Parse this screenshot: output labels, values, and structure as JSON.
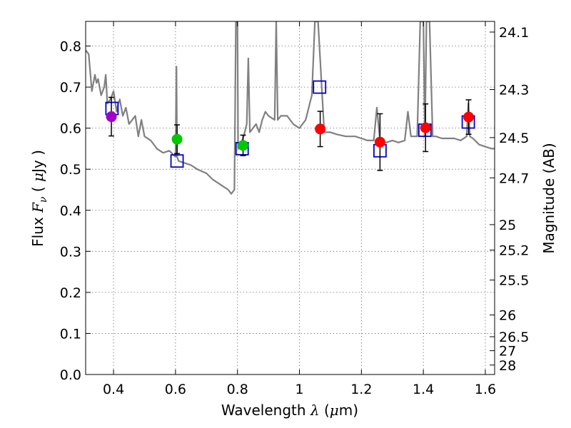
{
  "chart_data": {
    "type": "scatter",
    "xlabel": {
      "prefix": "Wavelength",
      "symbol": "λ",
      "units_open": "(",
      "units_mu": "μ",
      "units_rest": "m)"
    },
    "ylabel": {
      "prefix": "Flux",
      "symbol": "F",
      "subscript": "ν",
      "units_open": "( ",
      "units_mu": "μ",
      "units_rest": "Jy )"
    },
    "y2label": "Magnitude (AB)",
    "xlim": [
      0.31,
      1.63
    ],
    "ylim": [
      0.0,
      0.86
    ],
    "xticks": [
      0.4,
      0.6,
      0.8,
      1.0,
      1.2,
      1.4,
      1.6
    ],
    "xtick_labels": [
      "0.4",
      "0.6",
      "0.8",
      "1",
      "1.2",
      "1.4",
      "1.6"
    ],
    "yticks": [
      0.0,
      0.1,
      0.2,
      0.3,
      0.4,
      0.5,
      0.6,
      0.7,
      0.8
    ],
    "ytick_labels": [
      "0.0",
      "0.1",
      "0.2",
      "0.3",
      "0.4",
      "0.5",
      "0.6",
      "0.7",
      "0.8"
    ],
    "y2ticks": [
      {
        "flux": 0.834,
        "label": "24.1"
      },
      {
        "flux": 0.694,
        "label": "24.3"
      },
      {
        "flux": 0.577,
        "label": "24.5"
      },
      {
        "flux": 0.479,
        "label": "24.7"
      },
      {
        "flux": 0.365,
        "label": "25"
      },
      {
        "flux": 0.303,
        "label": "25.2"
      },
      {
        "flux": 0.23,
        "label": "25.5"
      },
      {
        "flux": 0.145,
        "label": "26"
      },
      {
        "flux": 0.092,
        "label": "26.5"
      },
      {
        "flux": 0.058,
        "label": "27"
      },
      {
        "flux": 0.023,
        "label": "28"
      }
    ],
    "grid": true,
    "series": [
      {
        "name": "model_sed",
        "kind": "line",
        "color": "#808080",
        "x": [
          0.31,
          0.32,
          0.33,
          0.34,
          0.345,
          0.35,
          0.36,
          0.37,
          0.375,
          0.38,
          0.39,
          0.4,
          0.41,
          0.415,
          0.42,
          0.43,
          0.44,
          0.45,
          0.47,
          0.48,
          0.49,
          0.5,
          0.52,
          0.54,
          0.56,
          0.58,
          0.6,
          0.603,
          0.605,
          0.61,
          0.63,
          0.65,
          0.67,
          0.7,
          0.72,
          0.75,
          0.77,
          0.78,
          0.79,
          0.795,
          0.8,
          0.802,
          0.805,
          0.81,
          0.82,
          0.83,
          0.835,
          0.84,
          0.85,
          0.86,
          0.87,
          0.88,
          0.89,
          0.9,
          0.92,
          0.925,
          0.93,
          0.94,
          0.96,
          0.98,
          1.0,
          1.02,
          1.04,
          1.05,
          1.06,
          1.08,
          1.1,
          1.12,
          1.15,
          1.18,
          1.2,
          1.22,
          1.24,
          1.25,
          1.26,
          1.28,
          1.3,
          1.32,
          1.34,
          1.35,
          1.36,
          1.38,
          1.39,
          1.4,
          1.405,
          1.41,
          1.42,
          1.43,
          1.44,
          1.46,
          1.48,
          1.5,
          1.52,
          1.54,
          1.545,
          1.55,
          1.56,
          1.58,
          1.6,
          1.62,
          1.63
        ],
        "y": [
          0.79,
          0.78,
          0.69,
          0.73,
          0.71,
          0.72,
          0.68,
          0.7,
          0.73,
          0.66,
          0.67,
          0.69,
          0.64,
          0.66,
          0.67,
          0.63,
          0.65,
          0.61,
          0.63,
          0.58,
          0.62,
          0.58,
          0.57,
          0.55,
          0.54,
          0.545,
          0.53,
          0.75,
          0.53,
          0.52,
          0.515,
          0.51,
          0.5,
          0.49,
          0.475,
          0.46,
          0.45,
          0.44,
          0.45,
          0.86,
          0.86,
          0.55,
          0.55,
          0.56,
          0.58,
          0.61,
          0.77,
          0.59,
          0.6,
          0.61,
          0.59,
          0.62,
          0.64,
          0.63,
          0.62,
          0.86,
          0.62,
          0.63,
          0.63,
          0.61,
          0.6,
          0.62,
          0.68,
          0.86,
          0.86,
          0.59,
          0.59,
          0.585,
          0.58,
          0.58,
          0.575,
          0.57,
          0.57,
          0.65,
          0.57,
          0.565,
          0.57,
          0.565,
          0.57,
          0.64,
          0.58,
          0.58,
          0.86,
          0.86,
          0.58,
          0.86,
          0.86,
          0.58,
          0.58,
          0.575,
          0.575,
          0.575,
          0.57,
          0.58,
          0.66,
          0.58,
          0.575,
          0.56,
          0.555,
          0.55,
          0.55
        ]
      },
      {
        "name": "model_photometry",
        "kind": "open-square",
        "color": "#0000cc",
        "x": [
          0.395,
          0.605,
          0.815,
          1.065,
          1.26,
          1.405,
          1.545
        ],
        "y": [
          0.648,
          0.52,
          0.55,
          0.7,
          0.545,
          0.595,
          0.615
        ]
      },
      {
        "name": "observed",
        "kind": "filled-circle",
        "x": [
          0.393,
          0.605,
          0.818,
          1.067,
          1.26,
          1.407,
          1.546
        ],
        "y": [
          0.628,
          0.573,
          0.558,
          0.598,
          0.566,
          0.601,
          0.627
        ],
        "err": [
          0.047,
          0.035,
          0.025,
          0.043,
          0.069,
          0.058,
          0.042
        ],
        "colors": [
          "#a000c8",
          "#00c800",
          "#00c800",
          "#ff0000",
          "#ff0000",
          "#ff0000",
          "#ff0000"
        ]
      }
    ]
  }
}
